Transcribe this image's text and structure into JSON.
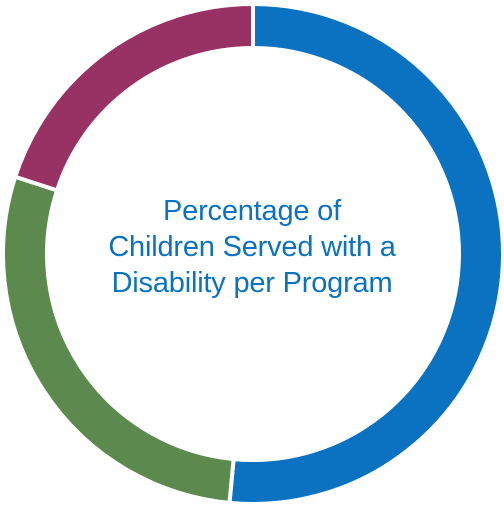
{
  "chart_data": {
    "type": "pie",
    "donut": true,
    "title_lines": [
      "Percentage of",
      "Children Served with a",
      "Disability per Program"
    ],
    "slices": [
      {
        "value": 51.5,
        "color": "#0a72c1"
      },
      {
        "value": 28.5,
        "color": "#5c8a4e"
      },
      {
        "value": 20.0,
        "color": "#983264"
      }
    ],
    "start_angle_deg": 0,
    "direction": "clockwise"
  }
}
